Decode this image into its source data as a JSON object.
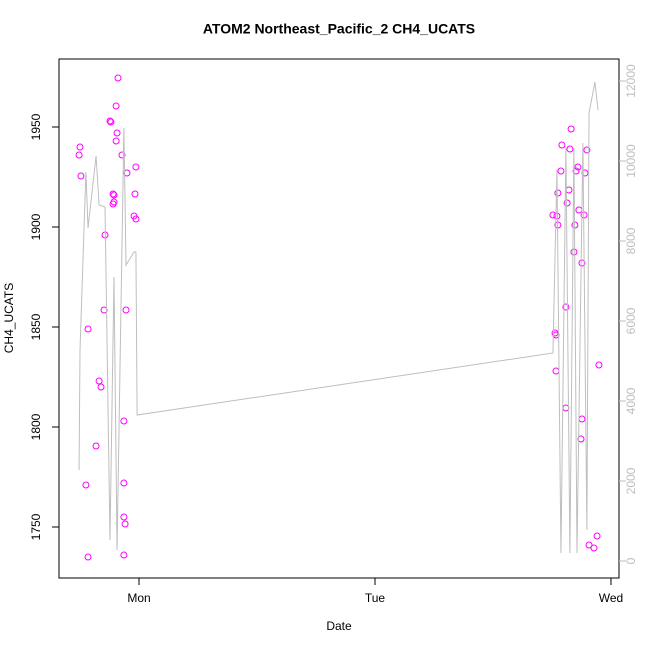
{
  "chart_data": {
    "type": "scatter",
    "title": "ATOM2 Northeast_Pacific_2 CH4_UCATS",
    "xlabel": "Date",
    "ylabel": "CH4_UCATS",
    "xlim": [
      0.661,
      3.034
    ],
    "xticks": [
      {
        "value": 1,
        "label": "Mon"
      },
      {
        "value": 2,
        "label": "Tue"
      },
      {
        "value": 3,
        "label": "Wed"
      }
    ],
    "ylim": [
      1724.5,
      1984
    ],
    "yticks": [
      1750,
      1800,
      1850,
      1900,
      1950
    ],
    "y2lim": [
      -425,
      12550
    ],
    "y2ticks": [
      0,
      2000,
      4000,
      6000,
      8000,
      10000,
      12000
    ],
    "series": [
      {
        "color": "#ff00ff",
        "x": [
          0.75,
          0.746,
          0.754,
          0.784,
          0.775,
          0.784,
          0.818,
          0.831,
          0.839,
          0.856,
          0.852,
          0.877,
          0.881,
          0.903,
          0.911,
          0.907,
          0.903,
          0.89,
          0.894,
          0.894,
          0.89,
          0.928,
          0.949,
          0.936,
          0.936,
          0.936,
          0.941,
          0.936,
          0.945,
          0.987,
          0.983,
          0.979,
          0.987,
          2.754,
          2.771,
          2.763,
          2.767,
          2.767,
          2.775,
          2.775,
          2.788,
          2.792,
          2.809,
          2.809,
          2.814,
          2.822,
          2.826,
          2.831,
          2.843,
          2.847,
          2.852,
          2.86,
          2.864,
          2.877,
          2.877,
          2.873,
          2.886,
          2.89,
          2.898,
          2.907,
          2.928,
          2.941,
          2.949
        ],
        "values": [
          1940,
          1936,
          1925.5,
          1849,
          1771,
          1735,
          1790.5,
          1823,
          1820,
          1896,
          1858.5,
          1953,
          1952.5,
          1960.5,
          1974.5,
          1947,
          1943,
          1916.5,
          1916,
          1912.5,
          1911.5,
          1936,
          1927,
          1803,
          1772,
          1755,
          1751.5,
          1736,
          1858.5,
          1930,
          1916.5,
          1905.5,
          1904,
          1906,
          1905.5,
          1847,
          1846,
          1828,
          1917,
          1901,
          1928,
          1941,
          1809.5,
          1860,
          1912,
          1918.5,
          1939,
          1949,
          1887.5,
          1901,
          1928,
          1930,
          1908.5,
          1882,
          1804,
          1794,
          1906,
          1927,
          1938.5,
          1741,
          1739.5,
          1745.5,
          1831
        ]
      },
      {
        "type": "line",
        "axis": "y2",
        "color": "#bebebe",
        "x": [
          0.746,
          0.75,
          0.775,
          0.784,
          0.818,
          0.831,
          0.856,
          0.877,
          0.894,
          0.907,
          0.936,
          0.945,
          0.979,
          0.987,
          0.992,
          2.754,
          2.771,
          2.788,
          2.809,
          2.826,
          2.843,
          2.856,
          2.881,
          2.898,
          2.907,
          2.932,
          2.945
        ],
        "values": [
          2275,
          5275,
          9725,
          8325,
          10125,
          8900,
          8850,
          525,
          7100,
          275,
          10825,
          7400,
          7725,
          7725,
          3650,
          5200,
          9775,
          200,
          10325,
          200,
          10325,
          200,
          10450,
          775,
          11200,
          11975,
          11275
        ]
      }
    ]
  }
}
